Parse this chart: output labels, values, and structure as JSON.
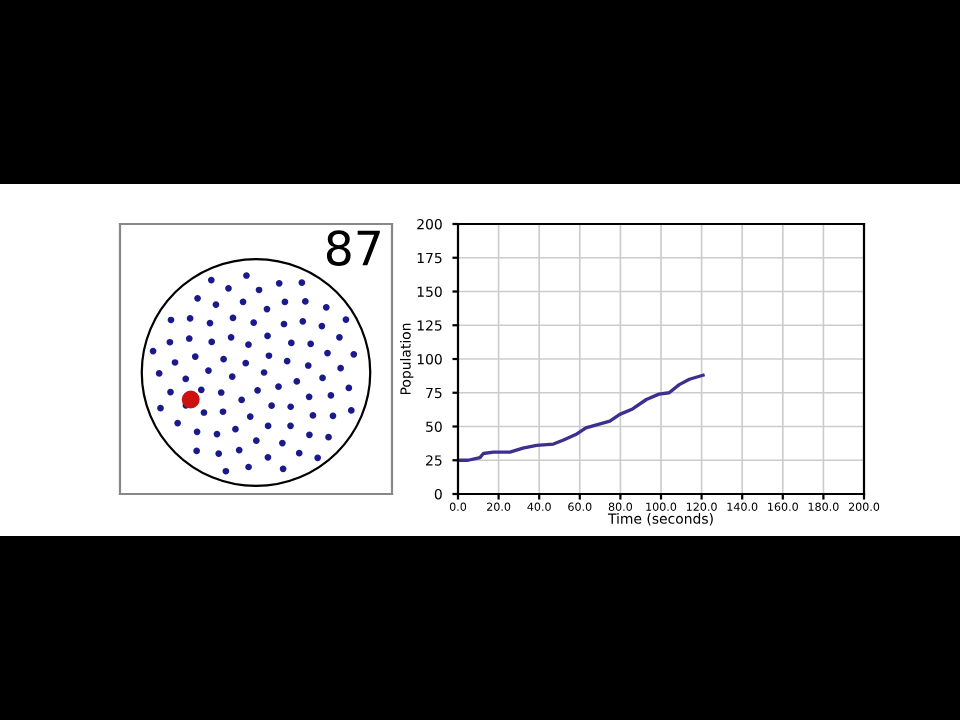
{
  "chart_data": {
    "type": "line",
    "xlabel": "Time (seconds)",
    "ylabel": "Population",
    "annotations": [
      "87"
    ],
    "series": [
      {
        "color": "#3b2f8f",
        "x": [
          0,
          5,
          10.8,
          12.5,
          17.4,
          25.6,
          32,
          38.7,
          47,
          52,
          58,
          63,
          70,
          74.8,
          79.7,
          86,
          92.8,
          99,
          104,
          109,
          114,
          120.7
        ],
        "values": [
          25,
          25,
          27,
          30,
          31,
          31,
          34,
          36,
          37,
          40,
          44,
          49,
          52,
          54,
          59,
          63,
          70,
          74,
          75,
          81,
          85,
          88
        ]
      }
    ],
    "xlim": [
      0,
      200
    ],
    "xticks": [
      {
        "value": 0,
        "label": "0.0"
      },
      {
        "value": 20,
        "label": "20.0"
      },
      {
        "value": 40,
        "label": "40.0"
      },
      {
        "value": 60,
        "label": "60.0"
      },
      {
        "value": 80,
        "label": "80.0"
      },
      {
        "value": 100,
        "label": "100.0"
      },
      {
        "value": 120,
        "label": "120.0"
      },
      {
        "value": 140,
        "label": "140.0"
      },
      {
        "value": 160,
        "label": "160.0"
      },
      {
        "value": 180,
        "label": "180.0"
      },
      {
        "value": 200,
        "label": "200.0"
      }
    ],
    "ylim": [
      0,
      200
    ],
    "yticks": [
      0,
      25,
      50,
      75,
      100,
      125,
      150,
      175,
      200
    ],
    "grid": true,
    "marker": "none",
    "line_style": "solid"
  }
}
